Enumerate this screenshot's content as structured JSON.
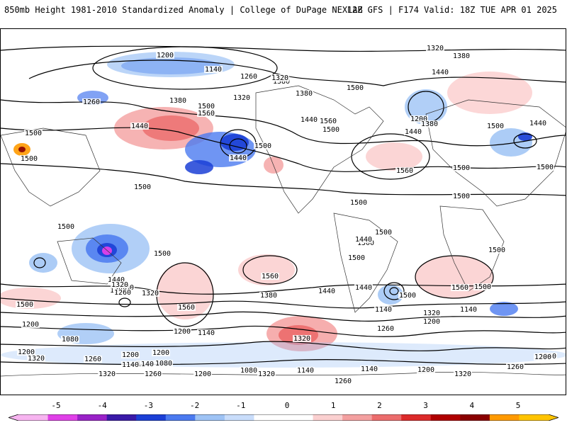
{
  "header": {
    "title_left": "850mb Height 1981-2010 Standardized Anomaly | College of DuPage NEXLAB",
    "title_right": "12Z GFS | F174 Valid: 18Z TUE APR 01 2025"
  },
  "map": {
    "contour_labels": [
      "1200",
      "1140",
      "1260",
      "1320",
      "1380",
      "1440",
      "1500",
      "1560",
      "1080"
    ],
    "labels": [
      {
        "t": "1200"
      },
      {
        "t": "1140"
      },
      {
        "t": "1260"
      },
      {
        "t": "1320"
      },
      {
        "t": "1380"
      },
      {
        "t": "1260"
      },
      {
        "t": "1380"
      },
      {
        "t": "1560"
      },
      {
        "t": "1500"
      },
      {
        "t": "1440"
      },
      {
        "t": "1560"
      },
      {
        "t": "1500"
      },
      {
        "t": "1440"
      },
      {
        "t": "1500"
      },
      {
        "t": "1500"
      },
      {
        "t": "1320"
      },
      {
        "t": "1320"
      },
      {
        "t": "1380"
      },
      {
        "t": "1440"
      },
      {
        "t": "1500"
      },
      {
        "t": "1380"
      },
      {
        "t": "1440"
      },
      {
        "t": "1200"
      },
      {
        "t": "1560"
      },
      {
        "t": "1500"
      },
      {
        "t": "1440"
      },
      {
        "t": "1380"
      },
      {
        "t": "1440"
      },
      {
        "t": "1500"
      },
      {
        "t": "1500"
      },
      {
        "t": "1500"
      },
      {
        "t": "1500"
      },
      {
        "t": "1500"
      },
      {
        "t": "1500"
      },
      {
        "t": "1500"
      },
      {
        "t": "1560"
      },
      {
        "t": "1500"
      },
      {
        "t": "1440"
      },
      {
        "t": "1380"
      },
      {
        "t": "1320"
      },
      {
        "t": "1560"
      },
      {
        "t": "1500"
      },
      {
        "t": "1500"
      },
      {
        "t": "1440"
      },
      {
        "t": "1380"
      },
      {
        "t": "1320"
      },
      {
        "t": "1260"
      },
      {
        "t": "1200"
      },
      {
        "t": "1140"
      },
      {
        "t": "1320"
      },
      {
        "t": "1200"
      },
      {
        "t": "1560"
      },
      {
        "t": "1500"
      },
      {
        "t": "1380"
      },
      {
        "t": "1320"
      },
      {
        "t": "1260"
      },
      {
        "t": "1200"
      },
      {
        "t": "1140"
      },
      {
        "t": "1200"
      },
      {
        "t": "1140"
      },
      {
        "t": "1080"
      },
      {
        "t": "1200"
      },
      {
        "t": "1320"
      },
      {
        "t": "1260"
      },
      {
        "t": "1200"
      },
      {
        "t": "1140"
      },
      {
        "t": "1080"
      },
      {
        "t": "1320"
      },
      {
        "t": "1260"
      },
      {
        "t": "1200"
      },
      {
        "t": "1080"
      },
      {
        "t": "1320"
      },
      {
        "t": "1140"
      },
      {
        "t": "1260"
      },
      {
        "t": "1140"
      },
      {
        "t": "1200"
      },
      {
        "t": "1260"
      },
      {
        "t": "1320"
      },
      {
        "t": "1260"
      },
      {
        "t": "1200"
      },
      {
        "t": "1140"
      },
      {
        "t": "1440"
      },
      {
        "t": "1500"
      },
      {
        "t": "1560"
      },
      {
        "t": "1500"
      },
      {
        "t": "1440"
      },
      {
        "t": "1500"
      },
      {
        "t": "1500"
      }
    ]
  },
  "colorbar": {
    "ticks": [
      "-5",
      "-4",
      "-3",
      "-2",
      "-1",
      "0",
      "1",
      "2",
      "3",
      "4",
      "5"
    ],
    "colors": [
      "#f7b4f0",
      "#e040e8",
      "#9a22c8",
      "#3a1aa8",
      "#1b3fd6",
      "#4b7af0",
      "#9ec3f5",
      "#c9ddfb",
      "#ffffff",
      "#ffffff",
      "#fbd0d0",
      "#f4a0a0",
      "#ec6c6c",
      "#dc2a2a",
      "#b00000",
      "#8a0000",
      "#ff9a00",
      "#ffc400"
    ]
  }
}
